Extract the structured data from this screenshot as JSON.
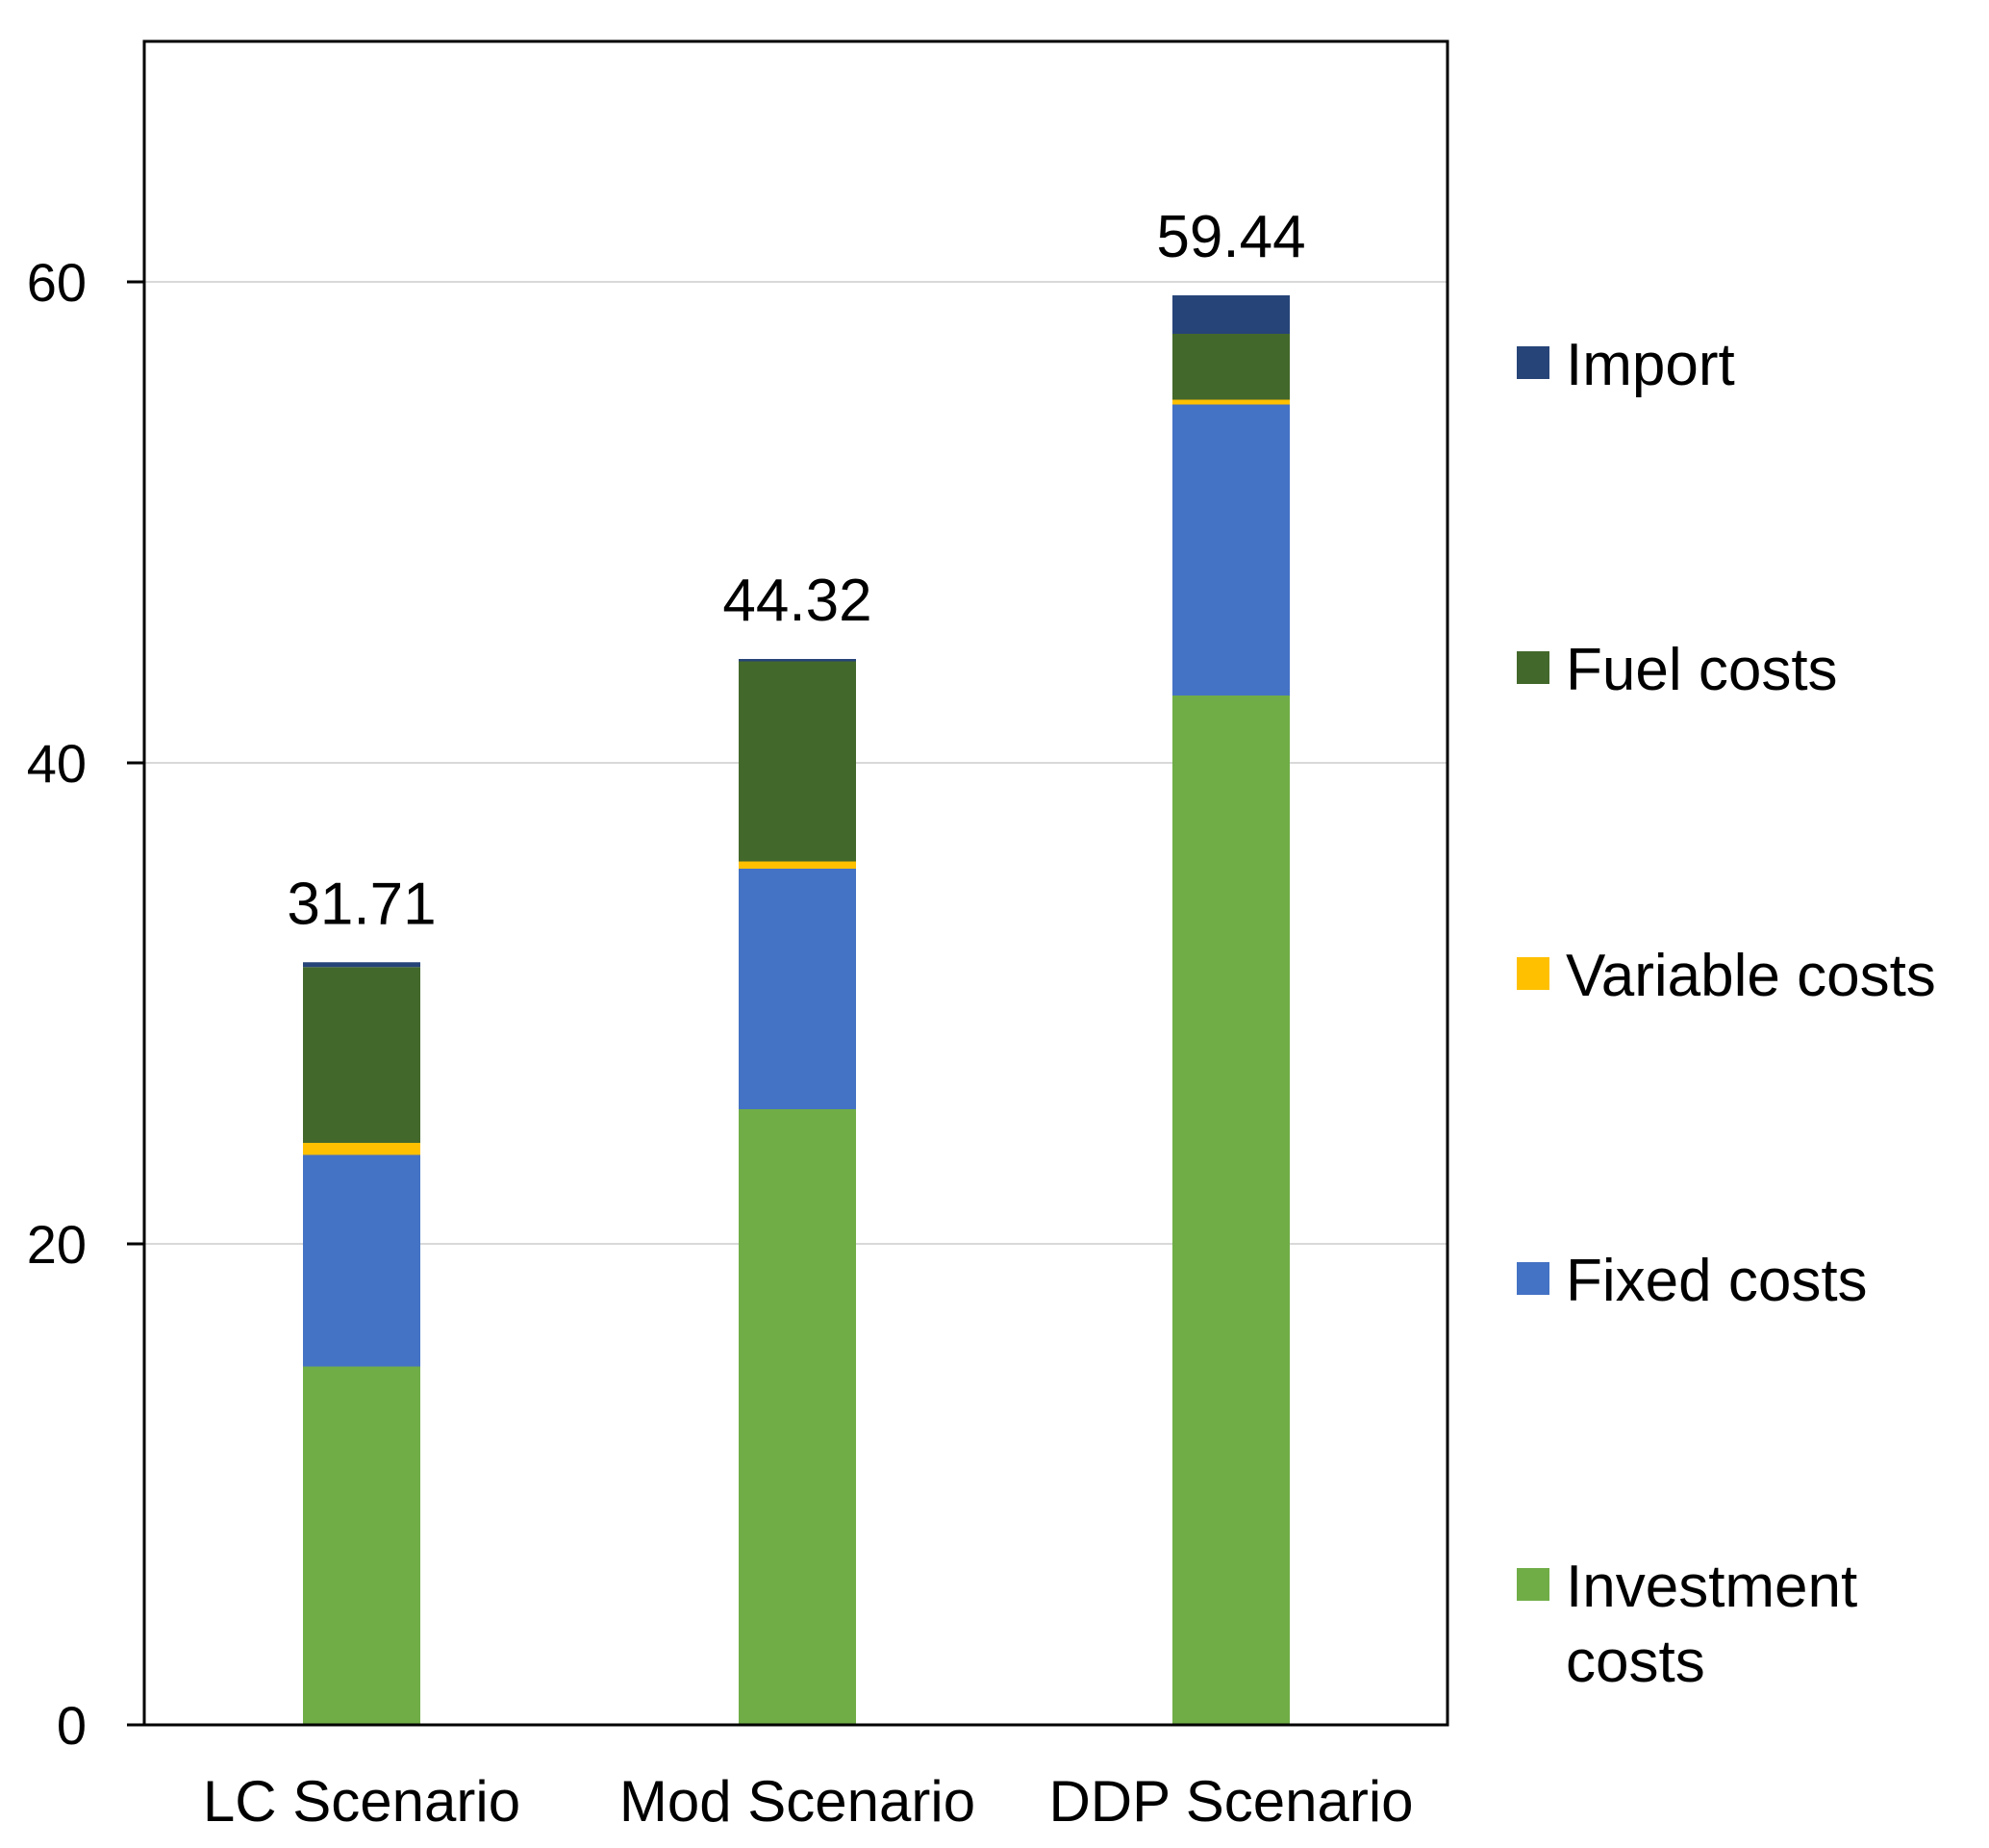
{
  "chart_data": {
    "type": "bar",
    "stacked": true,
    "title": "",
    "xlabel": "",
    "ylabel": "",
    "ylim": [
      0,
      70
    ],
    "yticks": [
      0,
      20,
      40,
      60
    ],
    "grid": true,
    "legend_position": "right",
    "categories": [
      "LC Scenario",
      "Mod Scenario",
      "DDP Scenario"
    ],
    "totals": [
      "31.71",
      "44.32",
      "59.44"
    ],
    "series": [
      {
        "name": "Investment costs",
        "color": "#70AD47",
        "values": [
          14.9,
          25.6,
          42.8
        ]
      },
      {
        "name": "Fixed costs",
        "color": "#4472C4",
        "values": [
          8.8,
          10.0,
          12.1
        ]
      },
      {
        "name": "Variable costs",
        "color": "#FFC000",
        "values": [
          0.5,
          0.3,
          0.2
        ]
      },
      {
        "name": "Fuel costs",
        "color": "#43682B",
        "values": [
          7.31,
          8.32,
          2.74
        ]
      },
      {
        "name": "Import",
        "color": "#264478",
        "values": [
          0.2,
          0.1,
          1.6
        ]
      }
    ],
    "legend_order": [
      "Import",
      "Fuel costs",
      "Variable costs",
      "Fixed costs",
      "Investment costs"
    ]
  }
}
